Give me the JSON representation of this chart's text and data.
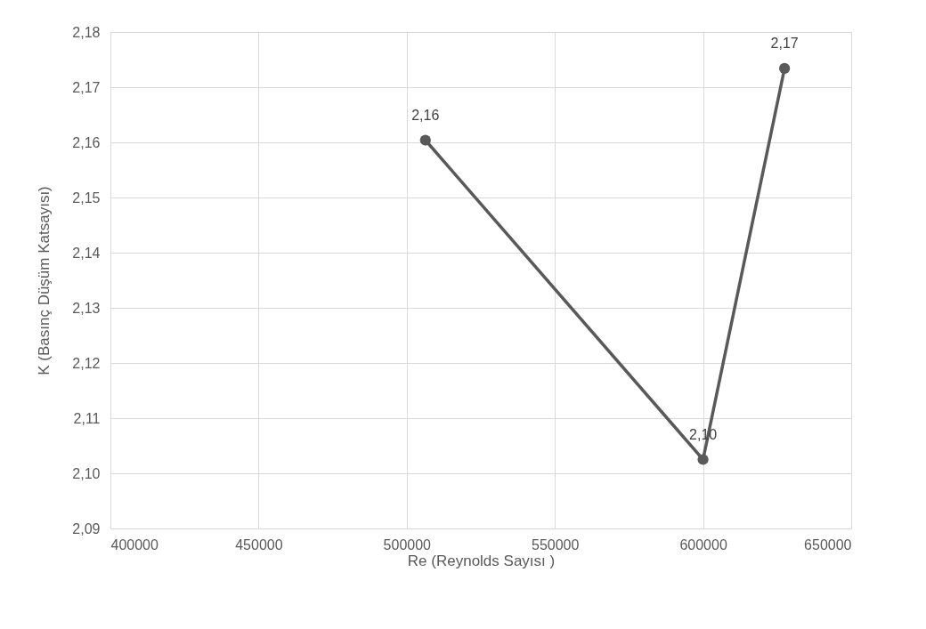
{
  "chart_data": {
    "type": "line",
    "xlabel": "Re (Reynolds  Sayısı  )",
    "ylabel": "K (Basınç Düşüm Katsayısı)",
    "x": [
      506300,
      600000,
      627500
    ],
    "series": [
      {
        "color": "#595959",
        "values": [
          2.1604,
          2.1025,
          2.1734
        ],
        "value_labels": [
          "2,16",
          "2,10",
          "2,17"
        ]
      }
    ],
    "xlim": [
      400000,
      650000
    ],
    "xticks": [
      400000,
      450000,
      500000,
      550000,
      600000,
      650000
    ],
    "ylim": [
      2.09,
      2.18
    ],
    "yticks": [
      {
        "value": 2.09,
        "label": "2,09"
      },
      {
        "value": 2.1,
        "label": "2,10"
      },
      {
        "value": 2.11,
        "label": "2,11"
      },
      {
        "value": 2.12,
        "label": "2,12"
      },
      {
        "value": 2.13,
        "label": "2,13"
      },
      {
        "value": 2.14,
        "label": "2,14"
      },
      {
        "value": 2.15,
        "label": "2,15"
      },
      {
        "value": 2.16,
        "label": "2,16"
      },
      {
        "value": 2.17,
        "label": "2,17"
      },
      {
        "value": 2.18,
        "label": "2,18"
      }
    ],
    "grid": true,
    "marker": "circle",
    "line_style": "solid"
  }
}
